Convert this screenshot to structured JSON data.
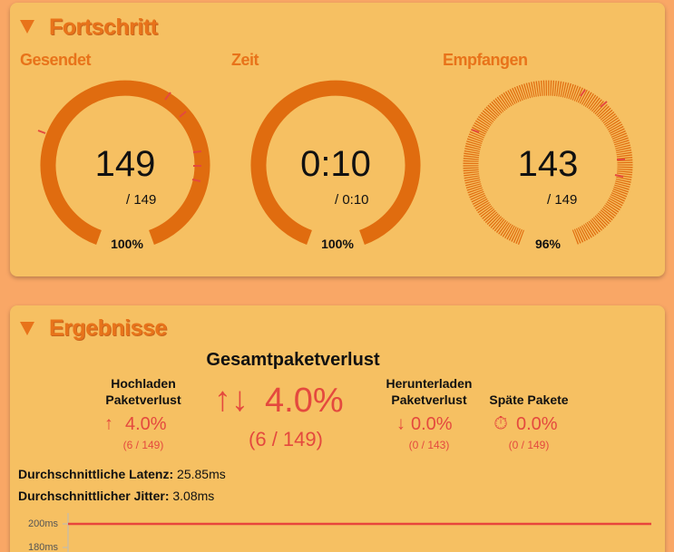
{
  "progress": {
    "title": "Fortschritt",
    "gauges": [
      {
        "label": "Gesendet",
        "value": "149",
        "total": "/ 149",
        "percent": "100%"
      },
      {
        "label": "Zeit",
        "value": "0:10",
        "total": "/ 0:10",
        "percent": "100%"
      },
      {
        "label": "Empfangen",
        "value": "143",
        "total": "/ 149",
        "percent": "96%"
      }
    ]
  },
  "results": {
    "title": "Ergebnisse",
    "total_loss": {
      "label": "Gesamtpaketverlust",
      "value": "4.0%",
      "count": "(6 / 149)"
    },
    "upload": {
      "label_1": "Hochladen",
      "label_2": "Paketverlust",
      "value": "4.0%",
      "count": "(6 / 149)"
    },
    "download": {
      "label_1": "Herunterladen",
      "label_2": "Paketverlust",
      "value": "0.0%",
      "count": "(0 / 143)"
    },
    "late": {
      "label": "Späte Pakete",
      "value": "0.0%",
      "count": "(0 / 149)"
    },
    "latency": {
      "label": "Durchschnittliche Latenz:",
      "value": "25.85ms"
    },
    "jitter": {
      "label": "Durchschnittlicher Jitter:",
      "value": "3.08ms"
    }
  },
  "chart_data": {
    "type": "line",
    "color": "#e8453c",
    "ylim": [
      180,
      200
    ],
    "yticks": [
      {
        "value": 200,
        "label": "200ms"
      },
      {
        "value": 180,
        "label": "180ms"
      }
    ],
    "series": [
      {
        "values": [
          200,
          200
        ]
      }
    ]
  }
}
